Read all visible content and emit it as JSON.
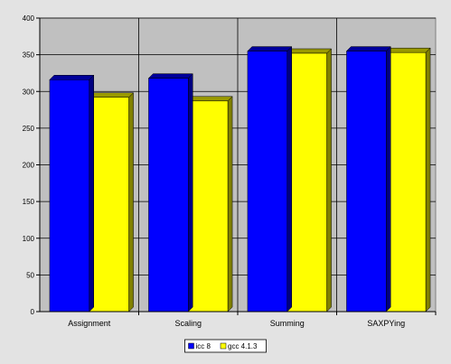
{
  "chart_data": {
    "type": "bar",
    "categories": [
      "Assignment",
      "Scaling",
      "Summing",
      "SAXPYing"
    ],
    "series": [
      {
        "name": "icc 8",
        "values": [
          316,
          318,
          355,
          355
        ]
      },
      {
        "name": "gcc 4.1.3",
        "values": [
          292,
          287,
          352,
          353
        ]
      }
    ],
    "ylim": [
      0,
      400
    ],
    "yticks": [
      0,
      50,
      100,
      150,
      200,
      250,
      300,
      350,
      400
    ],
    "grid": true,
    "legend": "bottom",
    "colors": {
      "plot_background": "#c0c0c0",
      "series": [
        "#0000ff",
        "#ffff00"
      ],
      "series_side": [
        "#000080",
        "#808000"
      ],
      "series_top": [
        "#000099",
        "#999900"
      ]
    }
  }
}
